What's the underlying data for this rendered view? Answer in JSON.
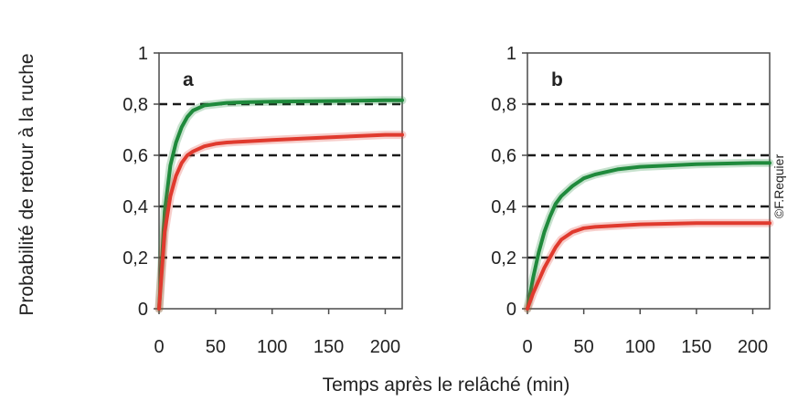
{
  "figure": {
    "ylabel": "Probabilité de retour à la ruche",
    "xlabel": "Temps après le relâché (min)",
    "credit": "©F.Requier"
  },
  "chart_data": [
    {
      "type": "line",
      "panel": "a",
      "xlim": [
        0,
        215
      ],
      "ylim": [
        0,
        1
      ],
      "xticks": [
        0,
        50,
        100,
        150,
        200
      ],
      "yticks": [
        0,
        0.2,
        0.4,
        0.6,
        0.8,
        1
      ],
      "xtick_labels": [
        "0",
        "50",
        "100",
        "150",
        "200"
      ],
      "ytick_labels": [
        "0",
        "0,2",
        "0,4",
        "0,6",
        "0,8",
        "1"
      ],
      "gridlines_y": [
        0.2,
        0.4,
        0.6,
        0.8
      ],
      "grid_style": "dashed",
      "series": [
        {
          "color": "#1f8a3c",
          "x": [
            0,
            5,
            10,
            15,
            20,
            25,
            30,
            40,
            50,
            60,
            80,
            100,
            150,
            200,
            215
          ],
          "y": [
            0,
            0.38,
            0.56,
            0.65,
            0.71,
            0.75,
            0.775,
            0.795,
            0.8,
            0.805,
            0.808,
            0.81,
            0.812,
            0.815,
            0.815
          ]
        },
        {
          "color": "#e03a2e",
          "x": [
            0,
            5,
            10,
            15,
            20,
            25,
            30,
            40,
            50,
            60,
            80,
            100,
            150,
            200,
            215
          ],
          "y": [
            0,
            0.3,
            0.44,
            0.52,
            0.57,
            0.6,
            0.615,
            0.635,
            0.645,
            0.65,
            0.655,
            0.66,
            0.67,
            0.68,
            0.68
          ]
        }
      ]
    },
    {
      "type": "line",
      "panel": "b",
      "xlim": [
        0,
        215
      ],
      "ylim": [
        0,
        1
      ],
      "xticks": [
        0,
        50,
        100,
        150,
        200
      ],
      "yticks": [
        0,
        0.2,
        0.4,
        0.6,
        0.8,
        1
      ],
      "xtick_labels": [
        "0",
        "50",
        "100",
        "150",
        "200"
      ],
      "ytick_labels": [
        "0",
        "0,2",
        "0,4",
        "0,6",
        "0,8",
        "1"
      ],
      "gridlines_y": [
        0.2,
        0.4,
        0.6,
        0.8
      ],
      "grid_style": "dashed",
      "series": [
        {
          "color": "#1f8a3c",
          "x": [
            0,
            5,
            10,
            15,
            20,
            25,
            30,
            40,
            50,
            60,
            80,
            100,
            150,
            200,
            215
          ],
          "y": [
            0,
            0.12,
            0.22,
            0.3,
            0.36,
            0.41,
            0.44,
            0.48,
            0.51,
            0.525,
            0.545,
            0.555,
            0.565,
            0.57,
            0.57
          ]
        },
        {
          "color": "#e03a2e",
          "x": [
            0,
            5,
            10,
            15,
            20,
            25,
            30,
            40,
            50,
            60,
            80,
            100,
            150,
            200,
            215
          ],
          "y": [
            0,
            0.06,
            0.11,
            0.16,
            0.2,
            0.24,
            0.27,
            0.3,
            0.315,
            0.32,
            0.325,
            0.33,
            0.335,
            0.335,
            0.335
          ]
        }
      ]
    }
  ]
}
